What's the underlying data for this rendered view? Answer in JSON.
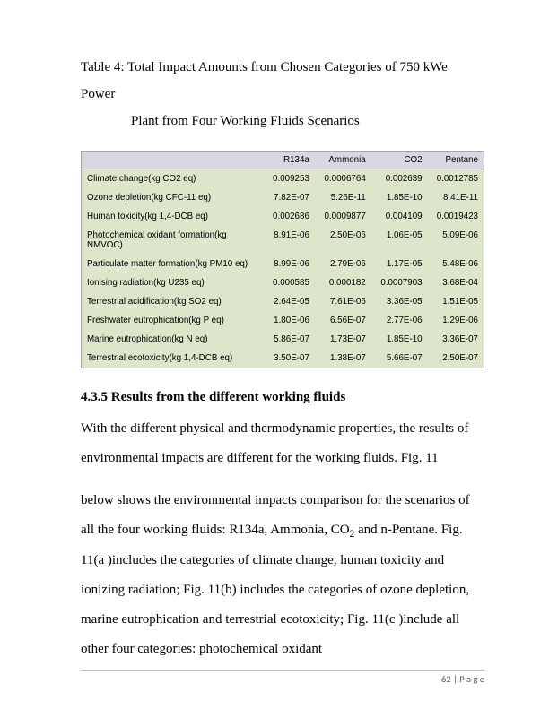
{
  "caption": {
    "line1": "Table 4:  Total Impact Amounts from Chosen Categories of  750 kWe Power",
    "line2": "Plant from  Four Working Fluids Scenarios"
  },
  "table": {
    "header_bg": "#d8d7e4",
    "body_bg": "#dde5cb",
    "border_color": "#a6a6a6",
    "columns": [
      "",
      "R134a",
      "Ammonia",
      "CO2",
      "Pentane"
    ],
    "rows": [
      {
        "cat": "Climate change(kg CO2 eq)",
        "v": [
          "0.009253",
          "0.0006764",
          "0.002639",
          "0.0012785"
        ]
      },
      {
        "cat": "Ozone depletion(kg CFC-11 eq)",
        "v": [
          "7.82E-07",
          "5.26E-11",
          "1.85E-10",
          "8.41E-11"
        ]
      },
      {
        "cat": "Human toxicity(kg 1,4-DCB eq)",
        "v": [
          "0.002686",
          "0.0009877",
          "0.004109",
          "0.0019423"
        ]
      },
      {
        "cat": "Photochemical oxidant formation(kg NMVOC)",
        "v": [
          "8.91E-06",
          "2.50E-06",
          "1.06E-05",
          "5.09E-06"
        ]
      },
      {
        "cat": "Particulate matter formation(kg PM10 eq)",
        "v": [
          "8.99E-06",
          "2.79E-06",
          "1.17E-05",
          "5.48E-06"
        ]
      },
      {
        "cat": "Ionising radiation(kg U235 eq)",
        "v": [
          "0.000585",
          "0.000182",
          "0.0007903",
          "3.68E-04"
        ]
      },
      {
        "cat": "Terrestrial acidification(kg SO2 eq)",
        "v": [
          "2.64E-05",
          "7.61E-06",
          "3.36E-05",
          "1.51E-05"
        ]
      },
      {
        "cat": "Freshwater eutrophication(kg P eq)",
        "v": [
          "1.80E-06",
          "6.56E-07",
          "2.77E-06",
          "1.29E-06"
        ]
      },
      {
        "cat": "Marine eutrophication(kg N eq)",
        "v": [
          "5.86E-07",
          "1.73E-07",
          "1.85E-10",
          "3.36E-07"
        ]
      },
      {
        "cat": "Terrestrial ecotoxicity(kg 1,4-DCB eq)",
        "v": [
          "3.50E-07",
          "1.38E-07",
          "5.66E-07",
          "2.50E-07"
        ]
      }
    ]
  },
  "heading": "4.3.5   Results from the different working fluids",
  "paragraphs": {
    "p1": "With the different physical and thermodynamic properties, the results of environmental impacts are different for the working fluids.   Fig. 11",
    "p2_pre": "below shows the environmental impacts comparison for the scenarios of all the four working fluids: R134a, Ammonia, CO",
    "p2_sub": "2",
    "p2_post": " and n-Pentane.  Fig. 11(a )includes the categories of climate change, human toxicity and ionizing radiation; Fig. 11(b) includes the categories of ozone depletion, marine eutrophication and terrestrial ecotoxicity; Fig. 11(c )include all other four categories: photochemical oxidant"
  },
  "footer": {
    "page_num": "62",
    "sep": " | ",
    "label": "P a g e"
  }
}
